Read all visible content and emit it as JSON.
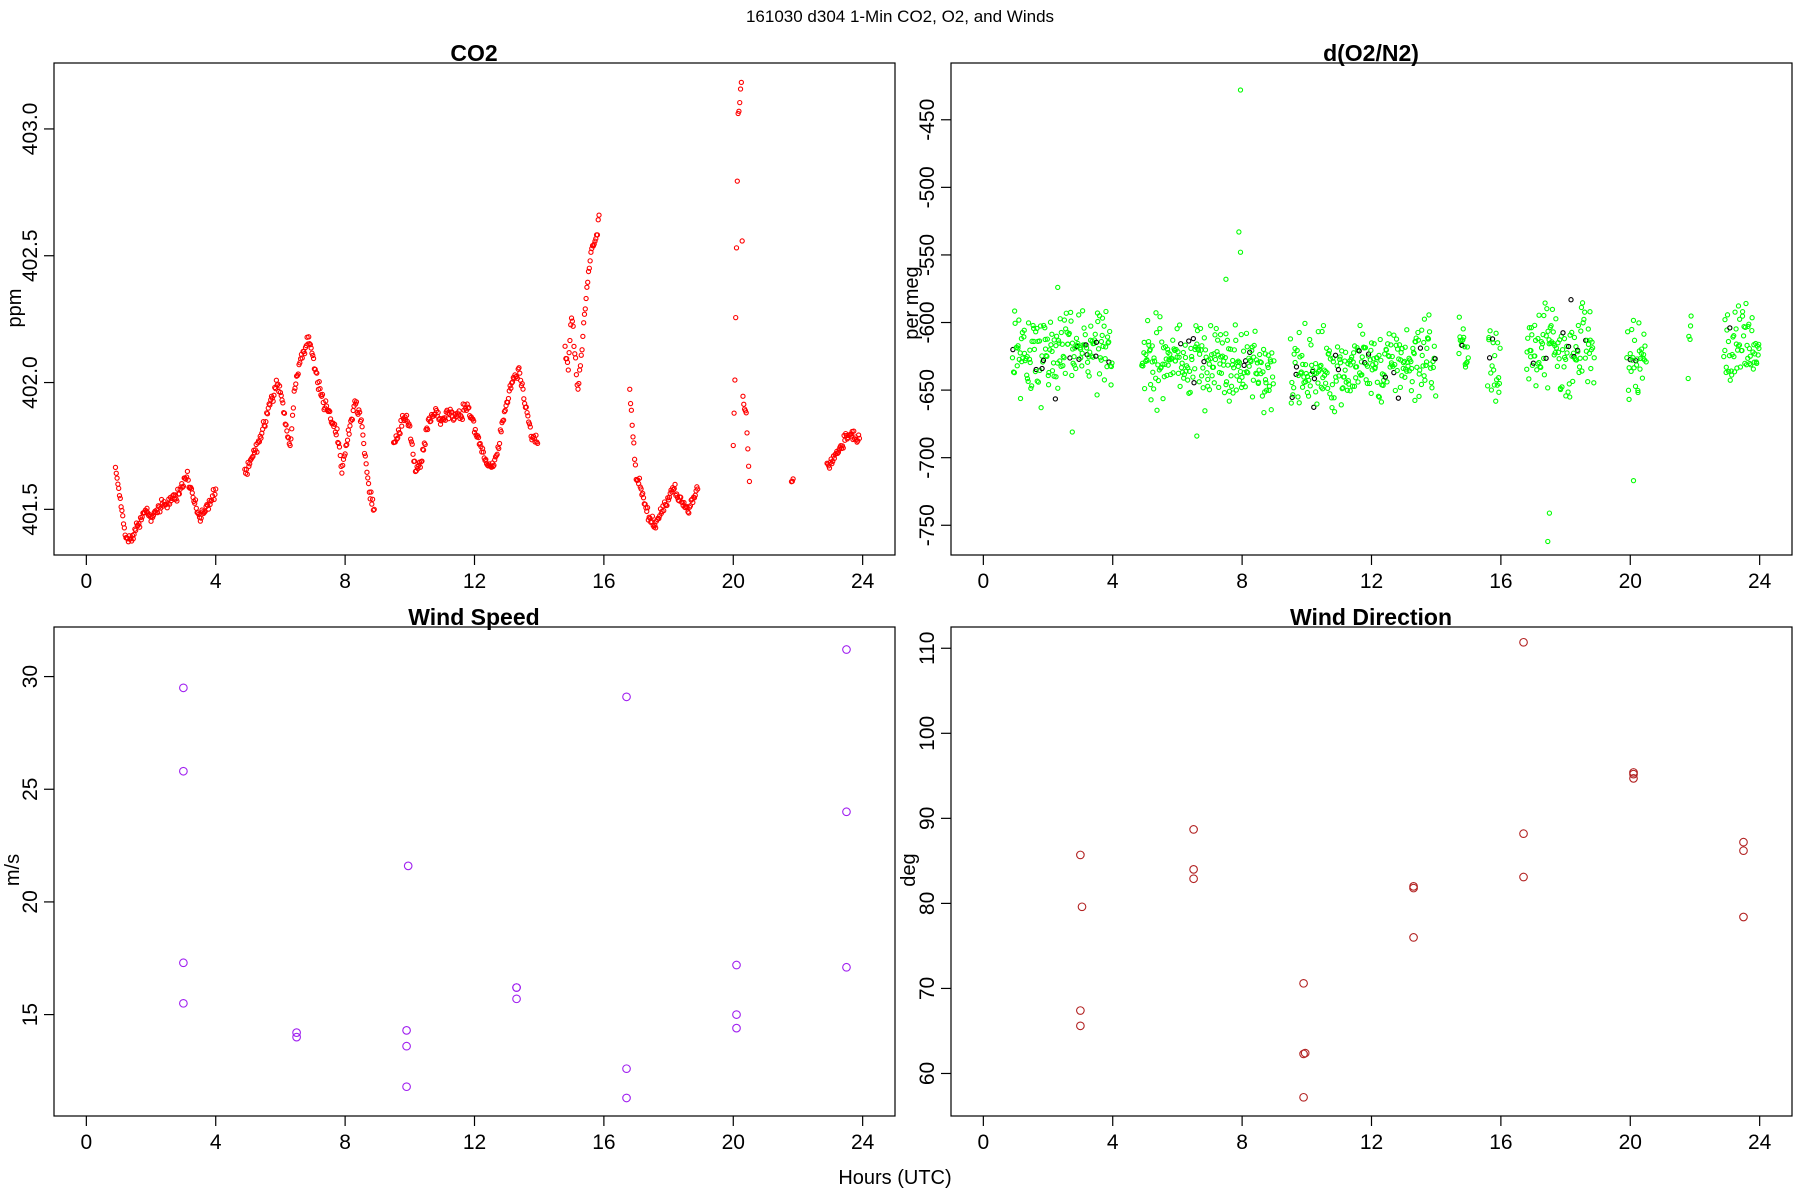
{
  "page": {
    "suptitle": "161030   d304   1-Min CO2, O2, and Winds",
    "shared_xlabel": "Hours (UTC)"
  },
  "chart_data": [
    {
      "id": "co2",
      "type": "scatter",
      "title": "CO2",
      "xlabel": "",
      "ylabel": "ppm",
      "xlim": [
        -1,
        25
      ],
      "ylim": [
        401.32,
        403.26
      ],
      "xticks": [
        0,
        4,
        8,
        12,
        16,
        20,
        24
      ],
      "yticks": [
        401.5,
        402.0,
        402.5,
        403.0
      ],
      "ytick_labels": [
        "401.5",
        "402.0",
        "402.5",
        "403.0"
      ],
      "grid": false,
      "marker": "open-circle",
      "color": "#ff0000",
      "segments": [
        {
          "x": [
            0.9,
            1.0,
            1.1,
            1.2,
            1.3,
            1.4,
            1.6,
            1.8,
            2.0,
            2.3,
            2.6,
            2.9,
            3.1,
            3.3,
            3.5,
            3.7,
            3.9,
            4.0
          ],
          "y": [
            401.67,
            401.58,
            401.48,
            401.4,
            401.37,
            401.39,
            401.44,
            401.5,
            401.47,
            401.51,
            401.53,
            401.58,
            401.63,
            401.55,
            401.47,
            401.5,
            401.55,
            401.58
          ]
        },
        {
          "x": [
            4.9,
            5.1,
            5.3,
            5.5,
            5.7,
            5.9,
            6.0,
            6.1,
            6.2,
            6.3,
            6.45,
            6.6,
            6.75,
            6.85,
            7.0,
            7.2,
            7.4,
            7.6,
            7.8,
            7.9,
            8.1,
            8.3,
            8.5,
            8.65,
            8.75,
            8.9
          ],
          "y": [
            401.65,
            401.7,
            401.76,
            401.82,
            401.93,
            402.0,
            401.97,
            401.9,
            401.8,
            401.76,
            401.98,
            402.08,
            402.13,
            402.17,
            402.1,
            401.98,
            401.9,
            401.85,
            401.78,
            401.66,
            401.8,
            401.92,
            401.85,
            401.68,
            401.56,
            401.5
          ]
        },
        {
          "x": [
            9.5,
            9.7,
            9.9,
            10.0,
            10.2,
            10.4,
            10.6,
            10.8,
            11.0,
            11.2,
            11.4,
            11.6,
            11.8,
            12.0,
            12.2,
            12.4,
            12.6,
            12.8,
            13.0,
            13.2,
            13.35,
            13.5,
            13.65,
            13.8,
            13.95
          ],
          "y": [
            401.76,
            401.82,
            401.87,
            401.8,
            401.64,
            401.72,
            401.86,
            401.88,
            401.85,
            401.88,
            401.86,
            401.88,
            401.91,
            401.83,
            401.74,
            401.69,
            401.67,
            401.8,
            401.93,
            402.02,
            402.05,
            401.96,
            401.86,
            401.79,
            401.76
          ]
        },
        {
          "x": [
            14.8,
            14.9,
            15.0,
            15.2,
            15.4,
            15.5,
            15.6,
            15.7,
            15.8,
            15.85
          ],
          "y": [
            402.14,
            402.05,
            402.27,
            401.97,
            402.25,
            402.4,
            402.52,
            402.55,
            402.6,
            402.66
          ]
        },
        {
          "x": [
            16.8,
            17.0,
            17.2,
            17.4,
            17.6,
            17.8,
            18.0,
            18.2,
            18.4,
            18.6,
            18.8,
            18.9
          ],
          "y": [
            401.96,
            401.63,
            401.56,
            401.46,
            401.44,
            401.5,
            401.55,
            401.58,
            401.52,
            401.5,
            401.55,
            401.58
          ]
        },
        {
          "x": [
            20.0,
            20.05,
            20.15,
            20.2,
            20.25,
            20.3,
            20.4,
            20.5
          ],
          "y": [
            401.76,
            402.01,
            403.05,
            403.1,
            403.2,
            401.94,
            401.87,
            401.61
          ]
        },
        {
          "x": [
            21.8,
            21.85
          ],
          "y": [
            401.6,
            401.62
          ]
        },
        {
          "x": [
            22.9,
            23.1,
            23.3,
            23.5,
            23.7,
            23.9
          ],
          "y": [
            401.66,
            401.7,
            401.73,
            401.78,
            401.8,
            401.78
          ]
        }
      ]
    },
    {
      "id": "o2",
      "type": "scatter",
      "title": "d(O2/N2)",
      "xlabel": "",
      "ylabel": "per meg",
      "xlim": [
        -1,
        25
      ],
      "ylim": [
        -772,
        -408
      ],
      "xticks": [
        0,
        4,
        8,
        12,
        16,
        20,
        24
      ],
      "yticks": [
        -750,
        -700,
        -650,
        -600,
        -550,
        -500,
        -450
      ],
      "ytick_labels": [
        "-750",
        "-700",
        "-650",
        "-600",
        "-550",
        "-500",
        "-450"
      ],
      "grid": false,
      "marker": "open-circle",
      "color": "#00ff00",
      "secondary_color": "#000000",
      "segments": [
        {
          "x": [
            0.9,
            2.0,
            3.0,
            4.0
          ],
          "y": [
            -620,
            -622,
            -620,
            -622
          ]
        },
        {
          "x": [
            4.9,
            6.0,
            7.0,
            8.0,
            9.0
          ],
          "y": [
            -625,
            -628,
            -630,
            -632,
            -636
          ]
        },
        {
          "x": [
            9.5,
            10.5,
            11.5,
            12.5,
            13.5,
            14.0
          ],
          "y": [
            -636,
            -634,
            -632,
            -630,
            -628,
            -625
          ]
        },
        {
          "x": [
            14.7,
            15.0
          ],
          "y": [
            -622,
            -622
          ]
        },
        {
          "x": [
            15.6,
            16.0
          ],
          "y": [
            -625,
            -625
          ]
        },
        {
          "x": [
            16.8,
            17.5,
            18.2,
            18.9
          ],
          "y": [
            -625,
            -618,
            -622,
            -620
          ]
        },
        {
          "x": [
            19.9,
            20.5
          ],
          "y": [
            -625,
            -632
          ]
        },
        {
          "x": [
            21.8,
            21.9
          ],
          "y": [
            -612,
            -612
          ]
        },
        {
          "x": [
            22.9,
            23.5,
            24.0
          ],
          "y": [
            -612,
            -606,
            -612
          ]
        }
      ],
      "outliers": [
        {
          "x": 7.95,
          "y": -428
        },
        {
          "x": 7.9,
          "y": -533
        },
        {
          "x": 7.95,
          "y": -548
        },
        {
          "x": 7.5,
          "y": -568
        },
        {
          "x": 17.5,
          "y": -741
        },
        {
          "x": 17.45,
          "y": -762
        },
        {
          "x": 20.1,
          "y": -717
        },
        {
          "x": 6.6,
          "y": -684
        },
        {
          "x": 2.75,
          "y": -681
        },
        {
          "x": 2.3,
          "y": -574
        }
      ]
    },
    {
      "id": "wind_speed",
      "type": "scatter",
      "title": "Wind Speed",
      "xlabel": "",
      "ylabel": "m/s",
      "xlim": [
        -1,
        25
      ],
      "ylim": [
        10.5,
        32.2
      ],
      "xticks": [
        0,
        4,
        8,
        12,
        16,
        20,
        24
      ],
      "yticks": [
        15,
        20,
        25,
        30
      ],
      "ytick_labels": [
        "15",
        "20",
        "25",
        "30"
      ],
      "grid": false,
      "marker": "open-circle",
      "color": "#a020f0",
      "x": [
        3.0,
        3.0,
        3.0,
        3.0,
        6.5,
        6.5,
        9.9,
        9.9,
        9.9,
        9.95,
        13.3,
        13.3,
        13.3,
        16.7,
        16.7,
        16.7,
        20.1,
        20.1,
        20.1,
        23.5,
        23.5,
        23.5
      ],
      "y": [
        29.5,
        25.8,
        17.3,
        15.5,
        14.2,
        14.0,
        14.3,
        13.6,
        11.8,
        21.6,
        16.2,
        16.2,
        15.7,
        29.1,
        12.6,
        11.3,
        17.2,
        15.0,
        14.4,
        31.2,
        24.0,
        17.1
      ]
    },
    {
      "id": "wind_direction",
      "type": "scatter",
      "title": "Wind Direction",
      "xlabel": "",
      "ylabel": "deg",
      "xlim": [
        -1,
        25
      ],
      "ylim": [
        55.0,
        112.5
      ],
      "xticks": [
        0,
        4,
        8,
        12,
        16,
        20,
        24
      ],
      "yticks": [
        60,
        70,
        80,
        90,
        100,
        110
      ],
      "ytick_labels": [
        "60",
        "70",
        "80",
        "90",
        "100",
        "110"
      ],
      "grid": false,
      "marker": "open-circle",
      "color": "#b22222",
      "x": [
        3.0,
        3.05,
        3.0,
        3.0,
        6.5,
        6.5,
        6.5,
        9.9,
        9.95,
        9.9,
        9.9,
        13.3,
        13.3,
        13.3,
        16.7,
        16.7,
        16.7,
        20.1,
        20.1,
        20.1,
        23.5,
        23.5,
        23.5
      ],
      "y": [
        85.7,
        79.6,
        67.4,
        65.6,
        88.7,
        84.0,
        82.9,
        70.6,
        62.4,
        62.3,
        57.2,
        82.0,
        81.8,
        76.0,
        110.7,
        88.2,
        83.1,
        95.4,
        95.2,
        94.7,
        87.2,
        86.2,
        78.4
      ]
    }
  ]
}
